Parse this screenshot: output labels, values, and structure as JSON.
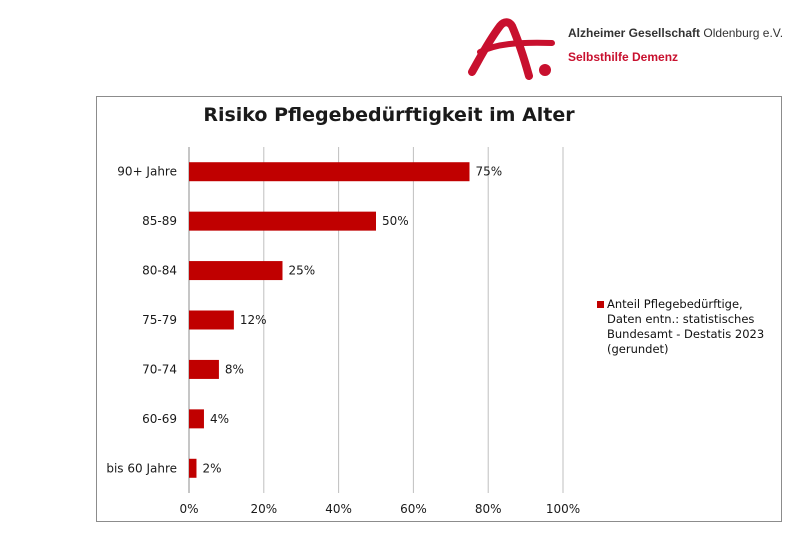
{
  "header": {
    "org_bold": "Alzheimer Gesellschaft",
    "org_rest": "Oldenburg e.V.",
    "tagline": "Selbsthilfe Demenz",
    "brand_color": "#c8102e",
    "logo_icon": "letter-a-with-dot-logo"
  },
  "chart_data": {
    "type": "bar",
    "orientation": "horizontal",
    "title": "Risiko Pflegebedürftigkeit im Alter",
    "categories": [
      "90+ Jahre",
      "85-89",
      "80-84",
      "75-79",
      "70-74",
      "60-69",
      "bis 60 Jahre"
    ],
    "series": [
      {
        "name": "Anteil Pflegebedürftige, Daten entn.: statistisches Bundesamt - Destatis 2023 (gerundet)",
        "values": [
          75,
          50,
          25,
          12,
          8,
          4,
          2
        ],
        "labels": [
          "75%",
          "50%",
          "25%",
          "12%",
          "8%",
          "4%",
          "2%"
        ],
        "color": "#c00000"
      }
    ],
    "xlim": [
      0,
      100
    ],
    "xticks": [
      "0%",
      "20%",
      "40%",
      "60%",
      "80%",
      "100%"
    ],
    "xlabel": "",
    "ylabel": "",
    "grid": "vertical",
    "legend_position": "right"
  }
}
